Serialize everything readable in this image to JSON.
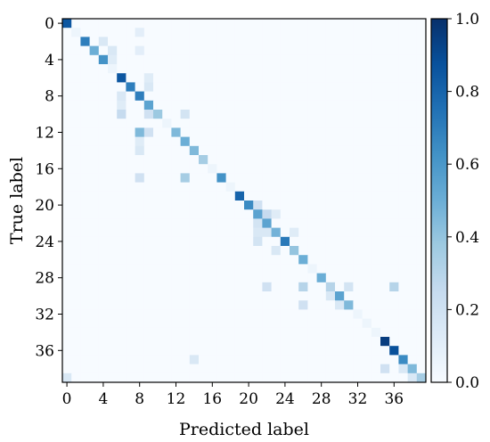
{
  "chart_data": {
    "type": "heatmap",
    "title": "",
    "xlabel": "Predicted label",
    "ylabel": "True label",
    "n_classes": 40,
    "x_ticks": [
      "0",
      "4",
      "8",
      "12",
      "16",
      "20",
      "24",
      "28",
      "32",
      "36"
    ],
    "y_ticks": [
      "0",
      "4",
      "8",
      "12",
      "16",
      "20",
      "24",
      "28",
      "32",
      "36"
    ],
    "colorbar": {
      "ticks": [
        "0.0",
        "0.2",
        "0.4",
        "0.6",
        "0.8",
        "1.0"
      ],
      "range": [
        0,
        1
      ],
      "colormap": "Blues"
    },
    "diagonal": [
      0.85,
      0.05,
      0.7,
      0.5,
      0.62,
      0.05,
      0.85,
      0.7,
      0.7,
      0.55,
      0.38,
      0.05,
      0.45,
      0.5,
      0.45,
      0.35,
      0.05,
      0.62,
      0.05,
      0.8,
      0.65,
      0.55,
      0.55,
      0.48,
      0.72,
      0.4,
      0.5,
      0.05,
      0.5,
      0.3,
      0.55,
      0.45,
      0.05,
      0.05,
      0.05,
      0.95,
      0.88,
      0.65,
      0.45,
      0.35
    ],
    "off_diagonal": [
      [
        3,
        5,
        0.15
      ],
      [
        3,
        8,
        0.1
      ],
      [
        2,
        4,
        0.15
      ],
      [
        4,
        5,
        0.12
      ],
      [
        1,
        8,
        0.1
      ],
      [
        6,
        9,
        0.12
      ],
      [
        7,
        9,
        0.15
      ],
      [
        8,
        6,
        0.15
      ],
      [
        9,
        6,
        0.12
      ],
      [
        10,
        6,
        0.25
      ],
      [
        10,
        9,
        0.2
      ],
      [
        10,
        13,
        0.18
      ],
      [
        12,
        8,
        0.45
      ],
      [
        12,
        9,
        0.2
      ],
      [
        13,
        8,
        0.12
      ],
      [
        14,
        8,
        0.15
      ],
      [
        17,
        8,
        0.2
      ],
      [
        17,
        13,
        0.35
      ],
      [
        20,
        21,
        0.2
      ],
      [
        21,
        22,
        0.25
      ],
      [
        21,
        23,
        0.12
      ],
      [
        22,
        21,
        0.18
      ],
      [
        23,
        21,
        0.15
      ],
      [
        23,
        22,
        0.15
      ],
      [
        23,
        25,
        0.12
      ],
      [
        24,
        21,
        0.18
      ],
      [
        25,
        23,
        0.15
      ],
      [
        29,
        22,
        0.2
      ],
      [
        29,
        26,
        0.3
      ],
      [
        29,
        31,
        0.18
      ],
      [
        29,
        36,
        0.3
      ],
      [
        30,
        29,
        0.15
      ],
      [
        31,
        26,
        0.2
      ],
      [
        31,
        30,
        0.15
      ],
      [
        38,
        35,
        0.2
      ],
      [
        38,
        37,
        0.15
      ],
      [
        39,
        38,
        0.15
      ],
      [
        39,
        0,
        0.15
      ],
      [
        37,
        14,
        0.15
      ]
    ]
  }
}
